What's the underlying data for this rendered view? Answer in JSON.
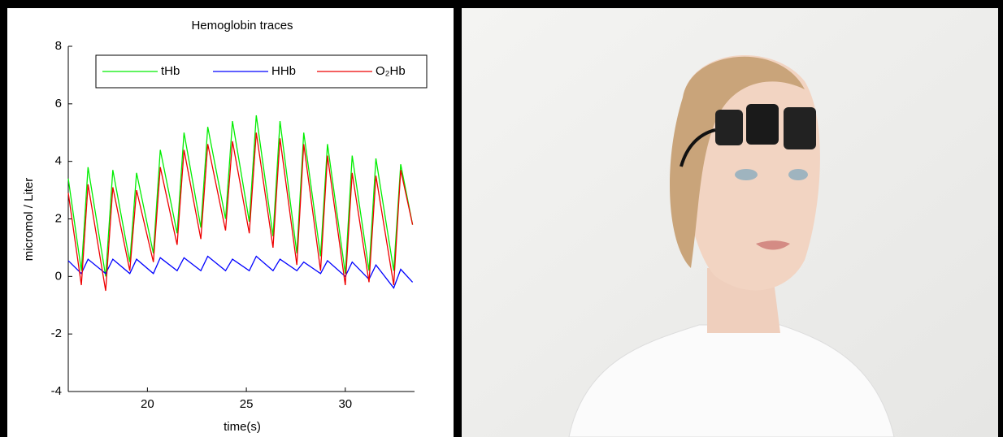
{
  "chart_data": {
    "type": "line",
    "title": "Hemoglobin traces",
    "x_label": "time(s)",
    "y_label": "micromol / Liter",
    "x": [
      16.0,
      16.66,
      17.0,
      17.89,
      18.25,
      19.11,
      19.45,
      20.3,
      20.65,
      21.5,
      21.85,
      22.7,
      23.05,
      23.95,
      24.3,
      25.15,
      25.5,
      26.35,
      26.7,
      27.55,
      27.9,
      28.75,
      29.1,
      30.0,
      30.35,
      31.2,
      31.55,
      32.45,
      32.8,
      33.4
    ],
    "series": [
      {
        "name": "tHb",
        "color": "#00ee00",
        "values": [
          3.4,
          0.2,
          3.8,
          0.0,
          3.7,
          0.5,
          3.6,
          0.8,
          4.4,
          1.5,
          5.0,
          1.7,
          5.2,
          2.0,
          5.4,
          1.9,
          5.6,
          1.4,
          5.4,
          0.8,
          5.0,
          0.7,
          4.6,
          0.1,
          4.2,
          0.2,
          4.1,
          0.2,
          3.9,
          1.8
        ]
      },
      {
        "name": "HHb",
        "color": "#0000ff",
        "values": [
          0.55,
          0.1,
          0.6,
          0.1,
          0.6,
          0.1,
          0.6,
          0.1,
          0.65,
          0.2,
          0.65,
          0.2,
          0.7,
          0.2,
          0.6,
          0.2,
          0.7,
          0.2,
          0.6,
          0.2,
          0.5,
          0.1,
          0.55,
          0.0,
          0.5,
          -0.1,
          0.4,
          -0.4,
          0.25,
          -0.2
        ]
      },
      {
        "name": "O₂Hb",
        "color": "#ee0000",
        "values": [
          2.9,
          -0.3,
          3.2,
          -0.5,
          3.1,
          0.2,
          3.0,
          0.5,
          3.8,
          1.1,
          4.4,
          1.3,
          4.6,
          1.6,
          4.7,
          1.5,
          5.0,
          1.0,
          4.8,
          0.4,
          4.6,
          0.2,
          4.2,
          -0.3,
          3.6,
          -0.2,
          3.5,
          -0.3,
          3.7,
          1.8
        ]
      }
    ],
    "xlim": [
      16,
      33.5
    ],
    "ylim": [
      -4,
      8
    ],
    "xticks": [
      20,
      25,
      30
    ],
    "yticks": [
      -4,
      -2,
      0,
      2,
      4,
      6,
      8
    ],
    "legend": "top"
  }
}
